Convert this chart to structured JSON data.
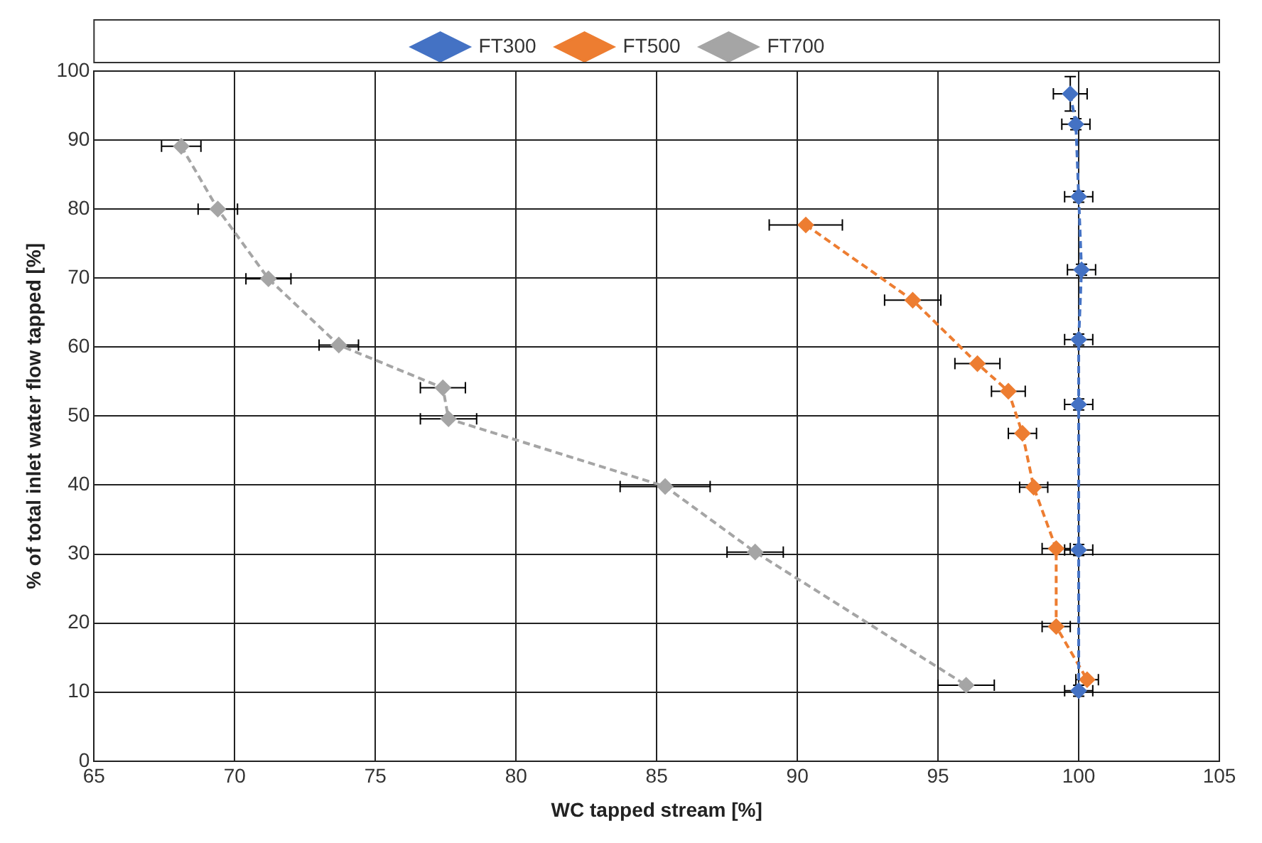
{
  "chart_data": {
    "type": "line",
    "xlabel": "WC tapped stream [%]",
    "ylabel": "% of total inlet water flow tapped [%]",
    "xlim": [
      65,
      105
    ],
    "xticks": [
      65,
      70,
      75,
      80,
      85,
      90,
      95,
      100,
      105
    ],
    "ylim": [
      0,
      100
    ],
    "yticks": [
      0,
      10,
      20,
      30,
      40,
      50,
      60,
      70,
      80,
      90,
      100
    ],
    "grid": true,
    "legend": "top",
    "marker": "diamond",
    "line_style": "dashed",
    "series": [
      {
        "name": "FT300",
        "color": "#4472c4",
        "x": [
          99.7,
          99.9,
          100.0,
          100.1,
          100.0,
          100.0,
          100.0,
          100.0
        ],
        "values": [
          96.7,
          92.3,
          81.8,
          71.2,
          61.1,
          51.7,
          30.6,
          10.2
        ],
        "xerrors": [
          0.6,
          0.5,
          0.5,
          0.5,
          0.5,
          0.5,
          0.5,
          0.5
        ],
        "errors": [
          2.5,
          0.8,
          0.8,
          0.8,
          0.8,
          0.8,
          0.8,
          0.8
        ]
      },
      {
        "name": "FT500",
        "color": "#ed7d31",
        "x": [
          90.3,
          94.1,
          96.4,
          97.5,
          98.0,
          98.4,
          99.2,
          99.2,
          100.3
        ],
        "values": [
          77.7,
          66.8,
          57.6,
          53.6,
          47.5,
          39.7,
          30.8,
          19.5,
          11.8
        ],
        "xerrors": [
          1.3,
          1.0,
          0.8,
          0.6,
          0.5,
          0.5,
          0.5,
          0.5,
          0.4
        ]
      },
      {
        "name": "FT700",
        "color": "#a5a5a5",
        "x": [
          68.1,
          69.4,
          71.2,
          73.7,
          77.4,
          77.6,
          85.3,
          88.5,
          96.0
        ],
        "values": [
          89.1,
          80.0,
          69.9,
          60.3,
          54.1,
          49.6,
          39.8,
          30.3,
          11.0
        ],
        "xerrors": [
          0.7,
          0.7,
          0.8,
          0.7,
          0.8,
          1.0,
          1.6,
          1.0,
          1.0
        ]
      }
    ]
  }
}
